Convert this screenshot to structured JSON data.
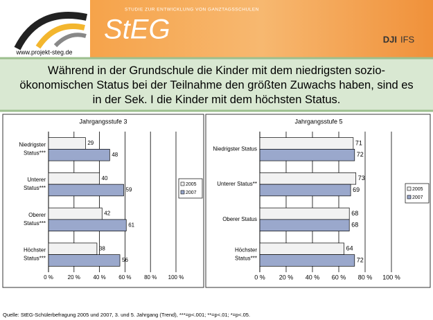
{
  "header": {
    "url": "www.projekt-steg.de",
    "banner": "STUDIE ZUR ENTWICKLUNG VON GANZTAGSSCHULEN",
    "logo": "StEG",
    "partner1": "DJI",
    "partner2": "IFS"
  },
  "headline": "Während in der Grundschule die Kinder mit dem niedrigsten sozio-ökonomischen Status bei der Teilnahme den größten Zuwachs haben, sind es in der Sek. I die Kinder mit dem höchsten Status.",
  "chart_data": [
    {
      "type": "hbar",
      "title": "Jahrgangsstufe 3",
      "categories": [
        "Niedrigster Status***",
        "Unterer Status***",
        "Oberer Status***",
        "Höchster Status***"
      ],
      "series": [
        {
          "name": "2005",
          "color": "#f2f2f2",
          "values": [
            29,
            40,
            42,
            38
          ]
        },
        {
          "name": "2007",
          "color": "#9aa8cc",
          "values": [
            48,
            59,
            61,
            56
          ]
        }
      ],
      "xlim": [
        0,
        100
      ],
      "xticks": [
        {
          "value": 0,
          "label": "0 %"
        },
        {
          "value": 20,
          "label": "20 %"
        },
        {
          "value": 40,
          "label": "40 %"
        },
        {
          "value": 60,
          "label": "60 %"
        },
        {
          "value": 80,
          "label": "80 %"
        },
        {
          "value": 100,
          "label": "100 %"
        }
      ],
      "grid": true,
      "legend": "right"
    },
    {
      "type": "hbar",
      "title": "Jahrgangsstufe 5",
      "categories": [
        "Niedrigster Status",
        "Unterer Status**",
        "Oberer Status",
        "Höchster Status***"
      ],
      "series": [
        {
          "name": "2005",
          "color": "#f2f2f2",
          "values": [
            71,
            73,
            68,
            64
          ]
        },
        {
          "name": "2007",
          "color": "#9aa8cc",
          "values": [
            72,
            69,
            68,
            72
          ]
        }
      ],
      "xlim": [
        0,
        100
      ],
      "xticks": [
        {
          "value": 0,
          "label": "0 %"
        },
        {
          "value": 20,
          "label": "20 %"
        },
        {
          "value": 40,
          "label": "40 %"
        },
        {
          "value": 60,
          "label": "60 %"
        },
        {
          "value": 80,
          "label": "80 %"
        },
        {
          "value": 100,
          "label": "100 %"
        }
      ],
      "grid": true,
      "legend": "right"
    }
  ],
  "footer": "Quelle: StEG-Schülerbefragung 2005 und 2007, 3. und 5. Jahrgang (Trend), ***=p<.001; **=p<.01; *=p<.05."
}
